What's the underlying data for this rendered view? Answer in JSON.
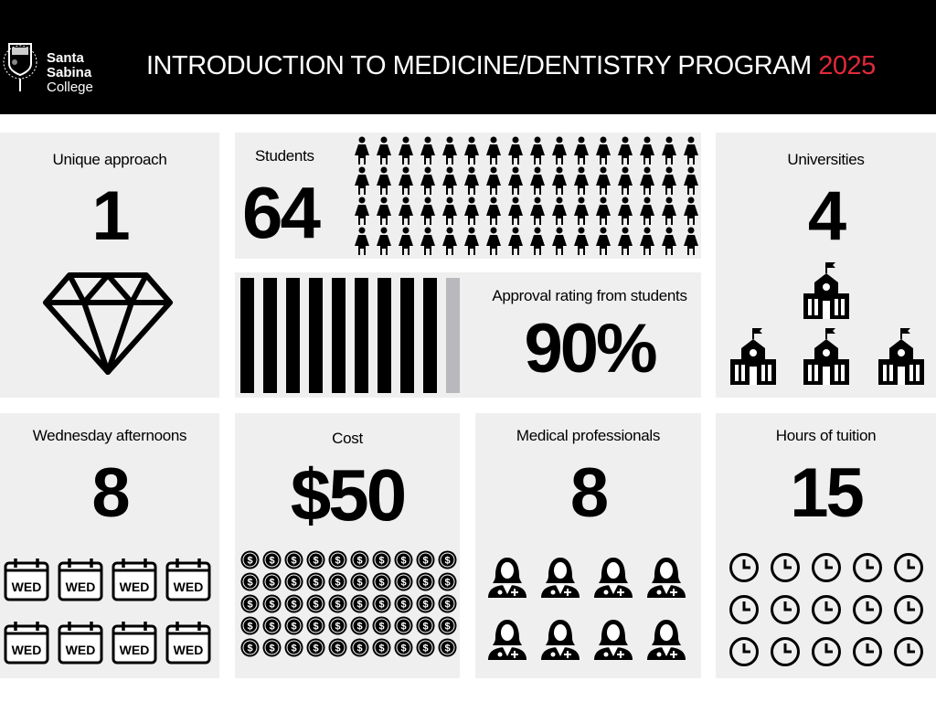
{
  "header": {
    "logo_line1": "Santa",
    "logo_line2": "Sabina",
    "logo_line3": "College",
    "title": "INTRODUCTION TO MEDICINE/DENTISTRY PROGRAM",
    "year": "2025",
    "year_color": "#e0293a"
  },
  "panels": {
    "unique": {
      "label": "Unique approach",
      "value": "1",
      "icon": "diamond-icon"
    },
    "students": {
      "label": "Students",
      "value": "64",
      "icon": "female-person-icon",
      "icon_count": 64
    },
    "approval": {
      "label": "Approval rating from students",
      "value": "90%",
      "percent": 90
    },
    "universities": {
      "label": "Universities",
      "value": "4",
      "icon": "university-building-icon",
      "icon_count": 4
    },
    "wednesday": {
      "label": "Wednesday afternoons",
      "value": "8",
      "icon": "calendar-icon",
      "icon_text": "WED",
      "icon_count": 8
    },
    "cost": {
      "label": "Cost",
      "value": "$50",
      "icon": "dollar-coin-icon",
      "icon_count": 50
    },
    "professionals": {
      "label": "Medical professionals",
      "value": "8",
      "icon": "doctor-icon",
      "icon_count": 8
    },
    "hours": {
      "label": "Hours of tuition",
      "value": "15",
      "icon": "clock-icon",
      "icon_count": 15
    }
  }
}
